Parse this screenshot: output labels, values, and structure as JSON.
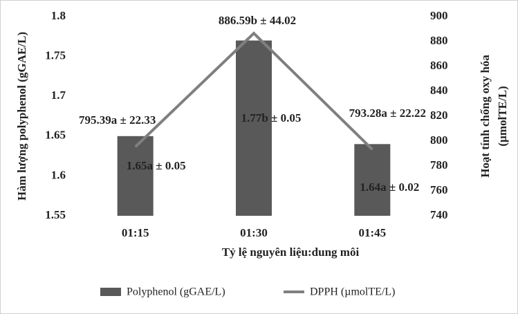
{
  "chart_data": {
    "type": "bar-line",
    "categories": [
      "01:15",
      "01:30",
      "01:45"
    ],
    "xlabel": "Tỷ lệ nguyên liệu:dung môi",
    "ylabel": "Hàm lượng polyphenol (gGAE/L)",
    "y2label": [
      "Hoạt tính chống oxy hóa",
      "(µmolTE/L)"
    ],
    "ylim": [
      1.55,
      1.8
    ],
    "yticks": [
      1.55,
      1.6,
      1.65,
      1.7,
      1.75,
      1.8
    ],
    "y2lim": [
      740,
      900
    ],
    "y2ticks": [
      740,
      760,
      780,
      800,
      820,
      840,
      860,
      880,
      900
    ],
    "legend": "bottom",
    "series": [
      {
        "name": "Polyphenol (gGAE/L)",
        "type": "bar",
        "color": "#595959",
        "values": [
          1.65,
          1.77,
          1.64
        ],
        "value_labels": [
          "1.65a ± 0.05",
          "1.77b ± 0.05",
          "1.64a ± 0.02"
        ]
      },
      {
        "name": "DPPH (µmolTE/L)",
        "type": "line",
        "axis": "y2",
        "color": "#7f7f7f",
        "values": [
          795.39,
          886.59,
          793.28
        ],
        "value_labels": [
          "795.39a ± 22.33",
          "886.59b ± 44.02",
          "793.28a ± 22.22"
        ]
      }
    ]
  }
}
